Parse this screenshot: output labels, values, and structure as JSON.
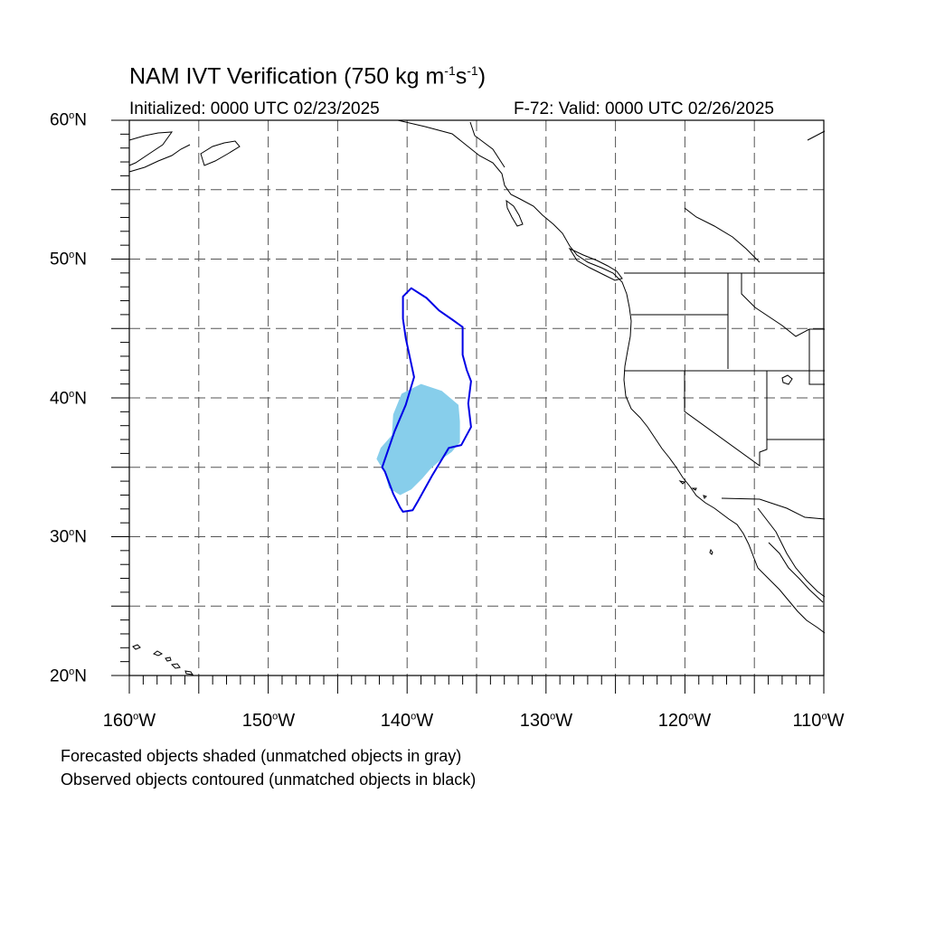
{
  "title": {
    "prefix": "NAM IVT Verification (750 kg m",
    "exp1": "-1",
    "mid": "s",
    "exp2": "-1",
    "suffix": ")"
  },
  "initialized": "Initialized: 0000 UTC 02/23/2025",
  "valid": "F-72: Valid: 0000 UTC 02/26/2025",
  "lat_labels": [
    {
      "num": "60",
      "hemi": "N"
    },
    {
      "num": "50",
      "hemi": "N"
    },
    {
      "num": "40",
      "hemi": "N"
    },
    {
      "num": "30",
      "hemi": "N"
    },
    {
      "num": "20",
      "hemi": "N"
    }
  ],
  "lon_labels": [
    {
      "num": "160",
      "hemi": "W"
    },
    {
      "num": "150",
      "hemi": "W"
    },
    {
      "num": "140",
      "hemi": "W"
    },
    {
      "num": "130",
      "hemi": "W"
    },
    {
      "num": "120",
      "hemi": "W"
    },
    {
      "num": "110",
      "hemi": "W"
    }
  ],
  "legend": {
    "line1": "Forecasted objects shaded (unmatched objects in gray)",
    "line2": "Observed objects contoured (unmatched objects in black)"
  },
  "colors": {
    "forecast_fill": "#87CEEB",
    "observed_contour": "#0000E6",
    "grid": "#555555",
    "coast": "#000000"
  },
  "map": {
    "lon_range": [
      -160,
      -110
    ],
    "lat_range": [
      20,
      60
    ],
    "grid_lon_step": 5,
    "grid_lat_step": 5
  },
  "forecast_object": {
    "points": [
      [
        -139,
        41
      ],
      [
        -137.5,
        40.5
      ],
      [
        -136.3,
        39.5
      ],
      [
        -136.2,
        38.3
      ],
      [
        -136.2,
        36.8
      ],
      [
        -136.8,
        36.1
      ],
      [
        -137.5,
        35.6
      ],
      [
        -138.3,
        34.9
      ],
      [
        -138.9,
        34.2
      ],
      [
        -139.7,
        33.4
      ],
      [
        -140.5,
        33
      ],
      [
        -141.3,
        33.5
      ],
      [
        -141.6,
        34.6
      ],
      [
        -142.2,
        35.6
      ],
      [
        -141.9,
        36.4
      ],
      [
        -141.1,
        37.3
      ],
      [
        -141,
        38.8
      ],
      [
        -140.4,
        40.3
      ]
    ]
  },
  "observed_object": {
    "points": [
      [
        -139.7,
        47.9
      ],
      [
        -138.6,
        47.2
      ],
      [
        -137.7,
        46.3
      ],
      [
        -136.7,
        45.6
      ],
      [
        -136.0,
        45.1
      ],
      [
        -136.0,
        43.1
      ],
      [
        -135.7,
        42.0
      ],
      [
        -135.4,
        41.2
      ],
      [
        -135.6,
        39.6
      ],
      [
        -135.4,
        37.9
      ],
      [
        -136.1,
        36.6
      ],
      [
        -137.0,
        36.4
      ],
      [
        -138.2,
        34.4
      ],
      [
        -139.2,
        32.6
      ],
      [
        -139.6,
        31.9
      ],
      [
        -140.3,
        31.8
      ],
      [
        -140.5,
        32.1
      ],
      [
        -141.0,
        33.1
      ],
      [
        -141.6,
        34.7
      ],
      [
        -141.8,
        35.0
      ],
      [
        -140.9,
        37.6
      ],
      [
        -140.1,
        39.5
      ],
      [
        -139.5,
        41.5
      ],
      [
        -140.1,
        44.3
      ],
      [
        -140.3,
        45.7
      ],
      [
        -140.3,
        47.3
      ]
    ]
  }
}
